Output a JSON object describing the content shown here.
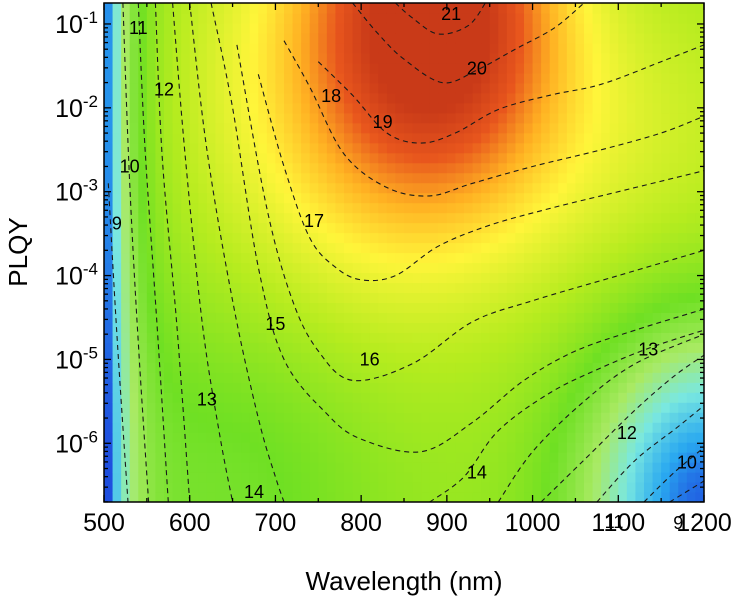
{
  "chart_data": {
    "type": "heatmap",
    "title": "",
    "xlabel": "Wavelength (nm)",
    "ylabel": "PLQY",
    "xlim": [
      500,
      1200
    ],
    "ylim_log10": [
      -6.7,
      -0.75
    ],
    "y_scale": "log",
    "x_ticks": [
      {
        "value": 500,
        "label": "500"
      },
      {
        "value": 600,
        "label": "600"
      },
      {
        "value": 700,
        "label": "700"
      },
      {
        "value": 800,
        "label": "800"
      },
      {
        "value": 900,
        "label": "900"
      },
      {
        "value": 1000,
        "label": "1000"
      },
      {
        "value": 1100,
        "label": "1100"
      },
      {
        "value": 1200,
        "label": "1200"
      }
    ],
    "y_ticks": [
      {
        "exp": -1,
        "base": "10",
        "sup": "-1"
      },
      {
        "exp": -2,
        "base": "10",
        "sup": "-2"
      },
      {
        "exp": -3,
        "base": "10",
        "sup": "-3"
      },
      {
        "exp": -4,
        "base": "10",
        "sup": "-4"
      },
      {
        "exp": -5,
        "base": "10",
        "sup": "-5"
      },
      {
        "exp": -6,
        "base": "10",
        "sup": "-6"
      }
    ],
    "colormap": [
      "#1a2ad8",
      "#29a8f0",
      "#7ae8e0",
      "#a9ea63",
      "#6fe023",
      "#b7ec1f",
      "#fff53a",
      "#ffb022",
      "#e8561d",
      "#c93a18"
    ],
    "color_range": [
      8,
      22
    ],
    "contour_labels": [
      {
        "text": "21",
        "x": 905,
        "log10": -0.88
      },
      {
        "text": "20",
        "x": 935,
        "log10": -1.53
      },
      {
        "text": "19",
        "x": 825,
        "log10": -2.17
      },
      {
        "text": "18",
        "x": 765,
        "log10": -1.86
      },
      {
        "text": "17",
        "x": 745,
        "log10": -3.35
      },
      {
        "text": "16",
        "x": 810,
        "log10": -5.0
      },
      {
        "text": "15",
        "x": 700,
        "log10": -4.58
      },
      {
        "text": "14",
        "x": 675,
        "log10": -6.58
      },
      {
        "text": "14",
        "x": 935,
        "log10": -6.35
      },
      {
        "text": "13",
        "x": 620,
        "log10": -5.48
      },
      {
        "text": "13",
        "x": 1135,
        "log10": -4.88
      },
      {
        "text": "12",
        "x": 570,
        "log10": -1.78
      },
      {
        "text": "12",
        "x": 1110,
        "log10": -5.88
      },
      {
        "text": "11",
        "x": 540,
        "log10": -1.05
      },
      {
        "text": "11",
        "x": 1095,
        "log10": -6.94
      },
      {
        "text": "10",
        "x": 530,
        "log10": -2.7
      },
      {
        "text": "10",
        "x": 1180,
        "log10": -6.23
      },
      {
        "text": "9",
        "x": 515,
        "log10": -3.38
      },
      {
        "text": "9",
        "x": 1170,
        "log10": -6.95
      }
    ],
    "contour_lines": [
      {
        "level": 21,
        "points": [
          [
            840,
            -0.75
          ],
          [
            860,
            -0.93
          ],
          [
            890,
            -1.12
          ],
          [
            925,
            -1.02
          ],
          [
            945,
            -0.75
          ]
        ]
      },
      {
        "level": 20,
        "points": [
          [
            790,
            -0.75
          ],
          [
            820,
            -1.12
          ],
          [
            850,
            -1.42
          ],
          [
            895,
            -1.7
          ],
          [
            935,
            -1.55
          ],
          [
            980,
            -1.3
          ],
          [
            1025,
            -1.05
          ],
          [
            1060,
            -0.75
          ]
        ]
      },
      {
        "level": 19,
        "points": [
          [
            750,
            -1.45
          ],
          [
            790,
            -1.85
          ],
          [
            830,
            -2.3
          ],
          [
            870,
            -2.42
          ],
          [
            910,
            -2.3
          ],
          [
            960,
            -2.02
          ],
          [
            1020,
            -1.85
          ],
          [
            1080,
            -1.72
          ],
          [
            1150,
            -1.45
          ],
          [
            1200,
            -1.25
          ]
        ]
      },
      {
        "level": 18,
        "points": [
          [
            710,
            -1.2
          ],
          [
            740,
            -1.75
          ],
          [
            780,
            -2.55
          ],
          [
            830,
            -2.95
          ],
          [
            880,
            -3.05
          ],
          [
            930,
            -2.9
          ],
          [
            1000,
            -2.7
          ],
          [
            1080,
            -2.5
          ],
          [
            1150,
            -2.3
          ],
          [
            1200,
            -2.1
          ]
        ]
      },
      {
        "level": 17,
        "points": [
          [
            680,
            -1.6
          ],
          [
            710,
            -2.7
          ],
          [
            740,
            -3.55
          ],
          [
            770,
            -3.9
          ],
          [
            800,
            -4.05
          ],
          [
            840,
            -4.0
          ],
          [
            890,
            -3.65
          ],
          [
            950,
            -3.4
          ],
          [
            1020,
            -3.2
          ],
          [
            1100,
            -3.0
          ],
          [
            1200,
            -2.75
          ]
        ]
      },
      {
        "level": 16,
        "points": [
          [
            655,
            -1.25
          ],
          [
            690,
            -3.2
          ],
          [
            720,
            -4.3
          ],
          [
            750,
            -4.9
          ],
          [
            790,
            -5.25
          ],
          [
            860,
            -5.05
          ],
          [
            930,
            -4.55
          ],
          [
            1000,
            -4.3
          ],
          [
            1100,
            -4.0
          ],
          [
            1200,
            -3.7
          ]
        ]
      },
      {
        "level": 15,
        "points": [
          [
            625,
            -0.75
          ],
          [
            650,
            -2.0
          ],
          [
            680,
            -3.9
          ],
          [
            710,
            -5.0
          ],
          [
            760,
            -5.65
          ],
          [
            800,
            -5.95
          ],
          [
            870,
            -6.1
          ],
          [
            930,
            -5.75
          ],
          [
            990,
            -5.25
          ],
          [
            1050,
            -4.9
          ],
          [
            1120,
            -4.65
          ],
          [
            1200,
            -4.4
          ]
        ]
      },
      {
        "level": 14,
        "points": [
          [
            600,
            -0.75
          ],
          [
            620,
            -2.5
          ],
          [
            650,
            -4.3
          ],
          [
            680,
            -5.7
          ],
          [
            700,
            -6.4
          ],
          [
            710,
            -6.7
          ]
        ]
      },
      {
        "level": 14,
        "points": [
          [
            880,
            -6.7
          ],
          [
            920,
            -6.4
          ],
          [
            960,
            -5.85
          ],
          [
            1020,
            -5.4
          ],
          [
            1080,
            -5.1
          ],
          [
            1140,
            -4.85
          ],
          [
            1200,
            -4.65
          ]
        ]
      },
      {
        "level": 13,
        "points": [
          [
            580,
            -0.75
          ],
          [
            595,
            -2.6
          ],
          [
            615,
            -4.6
          ],
          [
            635,
            -5.9
          ],
          [
            650,
            -6.7
          ]
        ]
      },
      {
        "level": 13,
        "points": [
          [
            960,
            -6.7
          ],
          [
            1000,
            -6.1
          ],
          [
            1060,
            -5.5
          ],
          [
            1120,
            -5.05
          ],
          [
            1200,
            -4.7
          ]
        ]
      },
      {
        "level": 12,
        "points": [
          [
            560,
            -0.75
          ],
          [
            568,
            -2.6
          ],
          [
            585,
            -4.6
          ],
          [
            600,
            -6.7
          ]
        ]
      },
      {
        "level": 12,
        "points": [
          [
            1010,
            -6.7
          ],
          [
            1060,
            -6.2
          ],
          [
            1120,
            -5.6
          ],
          [
            1165,
            -5.2
          ],
          [
            1200,
            -4.95
          ]
        ]
      },
      {
        "level": 11,
        "points": [
          [
            540,
            -0.75
          ],
          [
            548,
            -2.5
          ],
          [
            562,
            -4.6
          ],
          [
            575,
            -6.7
          ]
        ]
      },
      {
        "level": 11,
        "points": [
          [
            1075,
            -6.7
          ],
          [
            1120,
            -6.2
          ],
          [
            1170,
            -5.8
          ],
          [
            1200,
            -5.55
          ]
        ]
      },
      {
        "level": 10,
        "points": [
          [
            522,
            -0.75
          ],
          [
            530,
            -2.9
          ],
          [
            540,
            -4.8
          ],
          [
            552,
            -6.7
          ]
        ]
      },
      {
        "level": 10,
        "points": [
          [
            1130,
            -6.7
          ],
          [
            1165,
            -6.35
          ],
          [
            1200,
            -6.05
          ]
        ]
      },
      {
        "level": 9,
        "points": [
          [
            505,
            -2.9
          ],
          [
            515,
            -4.7
          ],
          [
            528,
            -6.7
          ]
        ]
      },
      {
        "level": 9,
        "points": [
          [
            1160,
            -6.7
          ],
          [
            1200,
            -6.45
          ]
        ]
      }
    ]
  }
}
